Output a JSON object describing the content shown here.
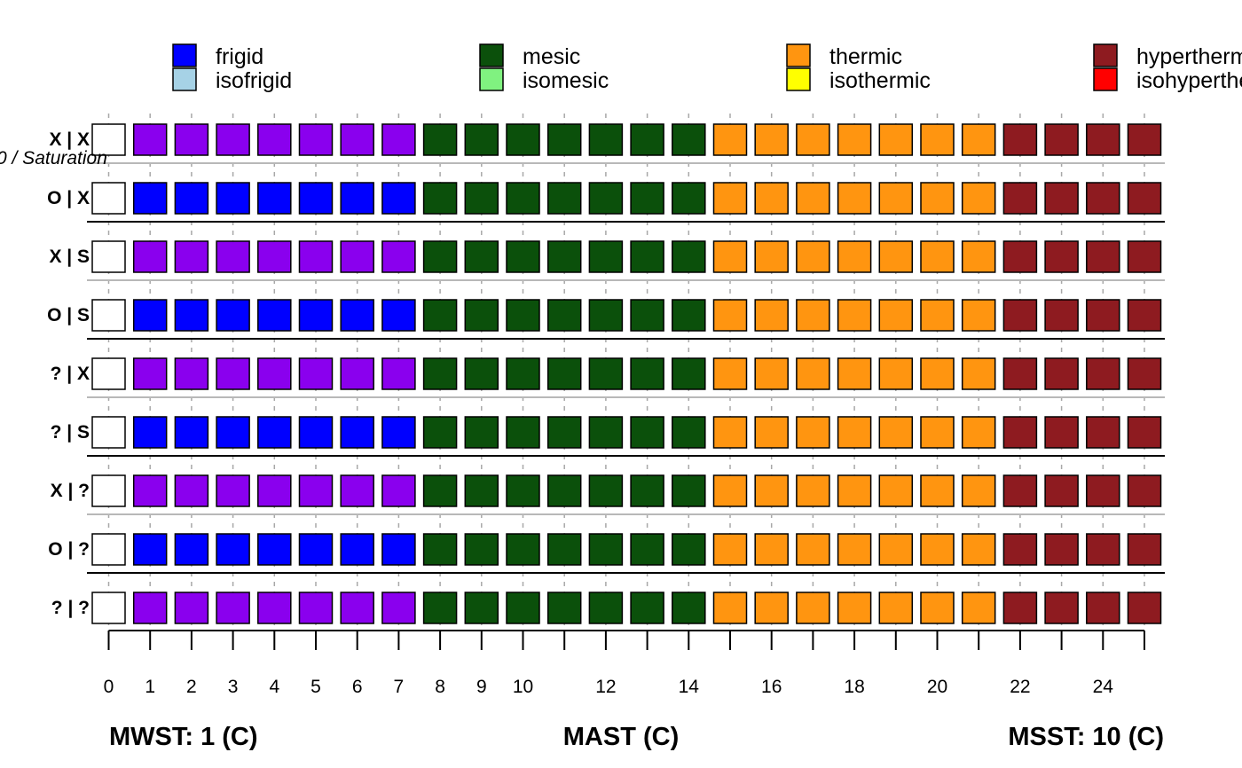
{
  "chart_data": {
    "type": "heatmap",
    "colors": {
      "white": "#ffffff",
      "purple": "#8a00ee",
      "blue": "#0000ff",
      "darkgreen": "#0b500b",
      "orange": "#ff9510",
      "darkred": "#8e1b20",
      "lightblue": "#a6d2e6",
      "lightgreen": "#80f280",
      "yellow": "#ffff00",
      "red": "#ff0000"
    },
    "legend": [
      {
        "label": "frigid",
        "color": "blue"
      },
      {
        "label": "isofrigid",
        "color": "lightblue"
      },
      {
        "label": "mesic",
        "color": "darkgreen"
      },
      {
        "label": "isomesic",
        "color": "lightgreen"
      },
      {
        "label": "thermic",
        "color": "orange"
      },
      {
        "label": "isothermic",
        "color": "yellow"
      },
      {
        "label": "hyperthermic",
        "color": "darkred"
      },
      {
        "label": "isohyperthermic",
        "color": "red"
      }
    ],
    "overlay_label": "0 / Saturation",
    "x": [
      0,
      1,
      2,
      3,
      4,
      5,
      6,
      7,
      8,
      9,
      10,
      11,
      12,
      13,
      14,
      15,
      16,
      17,
      18,
      19,
      20,
      21,
      22,
      23,
      24,
      25
    ],
    "x_tick_labels": [
      "0",
      "1",
      "2",
      "3",
      "4",
      "5",
      "6",
      "7",
      "8",
      "9",
      "10",
      "12",
      "14",
      "16",
      "18",
      "20",
      "22",
      "24"
    ],
    "x_tick_label_values": [
      0,
      1,
      2,
      3,
      4,
      5,
      6,
      7,
      8,
      9,
      10,
      12,
      14,
      16,
      18,
      20,
      22,
      24
    ],
    "rows": [
      {
        "label": "X | X",
        "pattern": "A"
      },
      {
        "label": "O | X",
        "pattern": "B"
      },
      {
        "label": "X | S",
        "pattern": "A"
      },
      {
        "label": "O | S",
        "pattern": "B"
      },
      {
        "label": "? | X",
        "pattern": "A"
      },
      {
        "label": "? | S",
        "pattern": "B"
      },
      {
        "label": "X | ?",
        "pattern": "A"
      },
      {
        "label": "O | ?",
        "pattern": "B"
      },
      {
        "label": "? | ?",
        "pattern": "A"
      }
    ],
    "patterns": {
      "A": [
        "white",
        "purple",
        "purple",
        "purple",
        "purple",
        "purple",
        "purple",
        "purple",
        "darkgreen",
        "darkgreen",
        "darkgreen",
        "darkgreen",
        "darkgreen",
        "darkgreen",
        "darkgreen",
        "orange",
        "orange",
        "orange",
        "orange",
        "orange",
        "orange",
        "orange",
        "darkred",
        "darkred",
        "darkred",
        "darkred"
      ],
      "B": [
        "white",
        "blue",
        "blue",
        "blue",
        "blue",
        "blue",
        "blue",
        "blue",
        "darkgreen",
        "darkgreen",
        "darkgreen",
        "darkgreen",
        "darkgreen",
        "darkgreen",
        "darkgreen",
        "orange",
        "orange",
        "orange",
        "orange",
        "orange",
        "orange",
        "orange",
        "darkred",
        "darkred",
        "darkred",
        "darkred"
      ]
    },
    "xlabel_left": "MWST: 1 (C)",
    "xlabel_center": "MAST (C)",
    "xlabel_right": "MSST: 10 (C)"
  }
}
